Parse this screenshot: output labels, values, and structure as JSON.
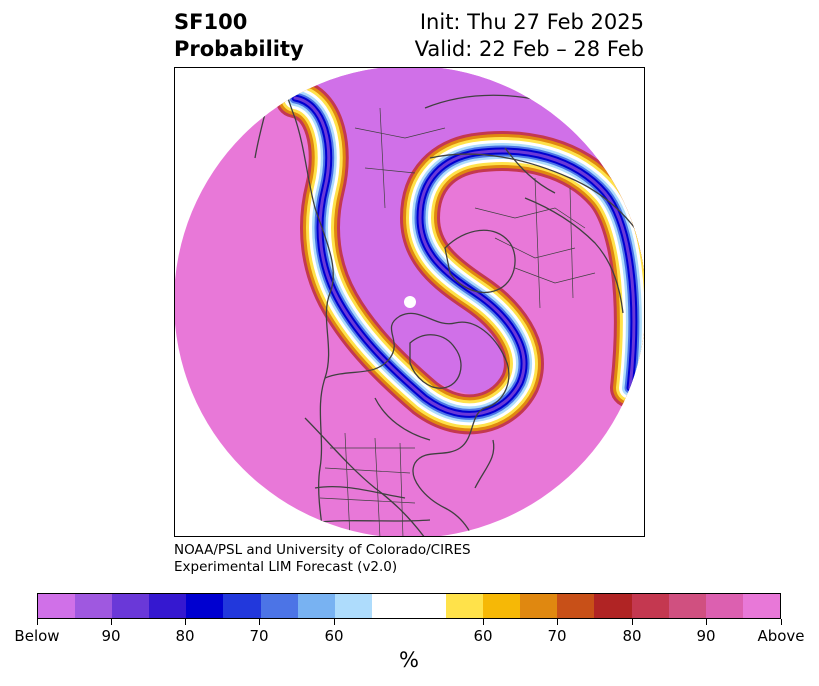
{
  "header": {
    "title_line1": "SF100",
    "title_line2": "Probability",
    "init_text": "Init: Thu 27 Feb 2025",
    "valid_text": "Valid: 22 Feb – 28 Feb"
  },
  "credit": {
    "line1": "NOAA/PSL and University of Colorado/CIRES",
    "line2": "Experimental LIM Forecast (v2.0)"
  },
  "colorbar": {
    "units": "%",
    "colors": [
      "#d070e8",
      "#9f58e0",
      "#6a38d8",
      "#3518d0",
      "#0000d0",
      "#2238dc",
      "#4c74e6",
      "#78b2f2",
      "#aedcfc",
      "#ffffff",
      "#ffffff",
      "#ffe24a",
      "#f6b806",
      "#e08810",
      "#c85018",
      "#b02424",
      "#c43850",
      "#d05080",
      "#dc60b0",
      "#e878d8"
    ],
    "tick_labels": [
      "Below",
      "90",
      "80",
      "70",
      "60",
      "60",
      "70",
      "80",
      "90",
      "Above"
    ]
  },
  "map": {
    "below_color": "#d070e8",
    "above_color": "#e878d8",
    "band_colors": [
      "#c43850",
      "#e08810",
      "#ffe24a",
      "#ffffff",
      "#aedcfc",
      "#4c74e6",
      "#0000d0",
      "#6a38d8"
    ],
    "coastline_color": "#404040"
  }
}
